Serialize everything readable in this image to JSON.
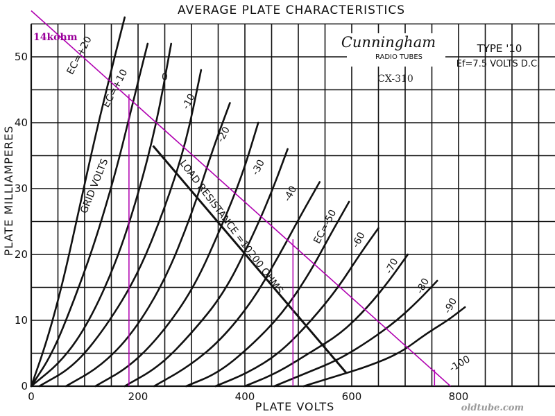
{
  "chart_data": {
    "type": "line",
    "title": "AVERAGE PLATE CHARACTERISTICS",
    "xlabel": "PLATE VOLTS",
    "ylabel": "PLATE MILLIAMPERES",
    "xlim": [
      0,
      1000
    ],
    "ylim": [
      0,
      55
    ],
    "x_ticks": [
      0,
      200,
      400,
      600,
      800
    ],
    "y_ticks": [
      0,
      10,
      20,
      30,
      40,
      50
    ],
    "grid": true,
    "curve_family_label": "GRID VOLTS",
    "series": [
      {
        "name": "EC=+20",
        "x": [
          0,
          30,
          60,
          90,
          120,
          150,
          175
        ],
        "y": [
          0,
          7,
          16,
          27,
          38,
          48,
          56
        ]
      },
      {
        "name": "EC=+10",
        "x": [
          0,
          40,
          80,
          120,
          160,
          190,
          218
        ],
        "y": [
          0,
          5,
          13,
          22,
          33,
          43,
          52
        ]
      },
      {
        "name": "0",
        "x": [
          0,
          60,
          110,
          160,
          200,
          235,
          262
        ],
        "y": [
          0,
          4,
          10,
          19,
          29,
          40,
          52
        ]
      },
      {
        "name": "-10",
        "x": [
          15,
          80,
          140,
          200,
          250,
          290,
          318
        ],
        "y": [
          0,
          3,
          9,
          17,
          27,
          37,
          48
        ]
      },
      {
        "name": "-20",
        "x": [
          65,
          130,
          190,
          250,
          300,
          340,
          372
        ],
        "y": [
          0,
          3,
          8,
          16,
          26,
          36,
          43
        ]
      },
      {
        "name": "-30",
        "x": [
          120,
          185,
          245,
          305,
          355,
          395,
          425
        ],
        "y": [
          0,
          3,
          8,
          15,
          24,
          32,
          40
        ]
      },
      {
        "name": "-40",
        "x": [
          175,
          240,
          300,
          360,
          410,
          448,
          480
        ],
        "y": [
          0,
          3,
          8,
          14,
          22,
          29,
          36
        ]
      },
      {
        "name": "EC=-50",
        "x": [
          230,
          295,
          355,
          415,
          465,
          505,
          540
        ],
        "y": [
          0,
          3,
          7,
          13,
          20,
          26,
          31
        ]
      },
      {
        "name": "-60",
        "x": [
          290,
          350,
          410,
          470,
          520,
          560,
          595
        ],
        "y": [
          0,
          2,
          6,
          11,
          17,
          23,
          28
        ]
      },
      {
        "name": "-70",
        "x": [
          345,
          405,
          465,
          525,
          575,
          615,
          650
        ],
        "y": [
          0,
          2,
          5,
          10,
          15,
          20,
          24
        ]
      },
      {
        "name": "-80",
        "x": [
          400,
          460,
          520,
          580,
          630,
          670,
          705
        ],
        "y": [
          0,
          2,
          5,
          8,
          12,
          16,
          20
        ]
      },
      {
        "name": "-90",
        "x": [
          455,
          515,
          575,
          635,
          685,
          725,
          760
        ],
        "y": [
          0,
          2,
          4,
          7,
          10,
          13,
          16
        ]
      },
      {
        "name": "-100",
        "x": [
          510,
          570,
          630,
          690,
          740,
          780,
          812
        ],
        "y": [
          0,
          1.5,
          3,
          5,
          8,
          10,
          12
        ]
      }
    ],
    "load_lines": [
      {
        "label": "LOAD RESISTANCE =10200 OHMS",
        "x": [
          228,
          590
        ],
        "y": [
          36.5,
          2
        ]
      },
      {
        "label": "14kohm",
        "x": [
          0,
          785
        ],
        "y": [
          57,
          0
        ]
      }
    ],
    "reference_lines_x": [
      183,
      490,
      755
    ],
    "curve_labels": [
      {
        "text": "EC=+20",
        "x": 95,
        "y": 50,
        "angle": -62
      },
      {
        "text": "EC=+10",
        "x": 162,
        "y": 45,
        "angle": -62
      },
      {
        "text": "0",
        "x": 250,
        "y": 46.5,
        "angle": 0
      },
      {
        "text": "-10",
        "x": 300,
        "y": 43,
        "angle": -62
      },
      {
        "text": "-20",
        "x": 365,
        "y": 38,
        "angle": -62
      },
      {
        "text": "-30",
        "x": 430,
        "y": 33,
        "angle": -62
      },
      {
        "text": "-40",
        "x": 490,
        "y": 29,
        "angle": -62
      },
      {
        "text": "EC=-50",
        "x": 555,
        "y": 24,
        "angle": -62
      },
      {
        "text": "-60",
        "x": 618,
        "y": 22,
        "angle": -62
      },
      {
        "text": "-70",
        "x": 680,
        "y": 18,
        "angle": -62
      },
      {
        "text": "-80",
        "x": 738,
        "y": 15,
        "angle": -62
      },
      {
        "text": "-90",
        "x": 790,
        "y": 12,
        "angle": -62
      },
      {
        "text": "-100",
        "x": 805,
        "y": 3,
        "angle": -30
      }
    ]
  },
  "brand": {
    "logo_name": "Cunningham",
    "logo_sub": "RADIO TUBES",
    "model": "CX-310",
    "type_label": "TYPE '10",
    "filament_label": "Ef=7.5 VOLTS D.C."
  },
  "watermark": "oldtube.com",
  "colors": {
    "ink": "#111111",
    "overlay": "#b000b0",
    "overlay_text": "#9a009a",
    "watermark": "#9a9a9a"
  }
}
